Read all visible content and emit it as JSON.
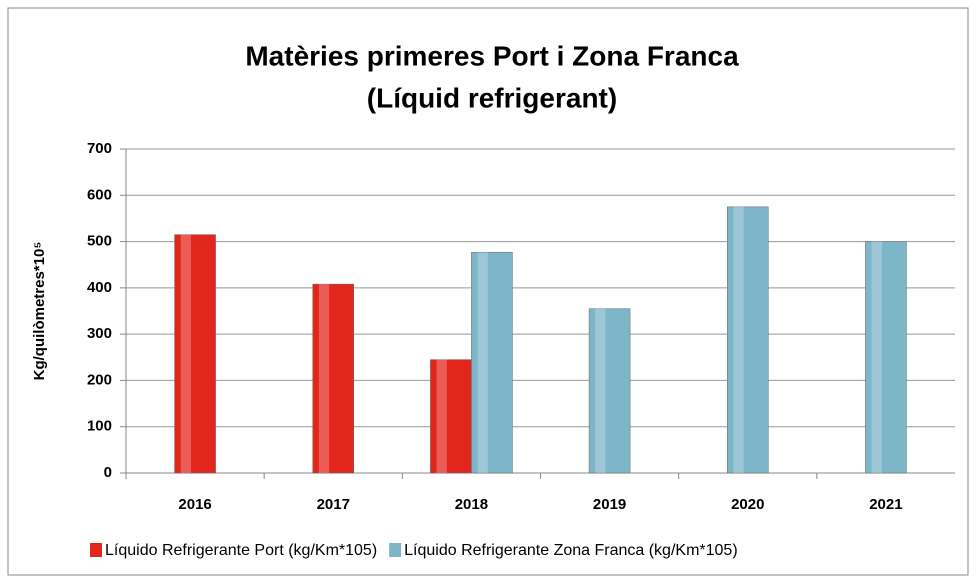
{
  "chart_data": {
    "type": "bar",
    "title": [
      "Matèries primeres Port i Zona Franca",
      "(Líquid refrigerant)"
    ],
    "y_label": "Kg/quilòmetres*10⁵",
    "categories": [
      "2016",
      "2017",
      "2018",
      "2019",
      "2020",
      "2021"
    ],
    "series": [
      {
        "name": "Líquido Refrigerante Port (kg/Km*105)",
        "color": "#e3261c",
        "values": [
          515,
          408,
          245,
          null,
          null,
          null
        ]
      },
      {
        "name": "Líquido Refrigerante Zona Franca (kg/Km*105)",
        "color": "#7db5c9",
        "values": [
          null,
          null,
          477,
          355,
          575,
          500
        ]
      }
    ],
    "ylim": [
      0,
      700
    ],
    "yticks": [
      0,
      100,
      200,
      300,
      400,
      500,
      600,
      700
    ],
    "grid": true,
    "legend": "bottom"
  }
}
